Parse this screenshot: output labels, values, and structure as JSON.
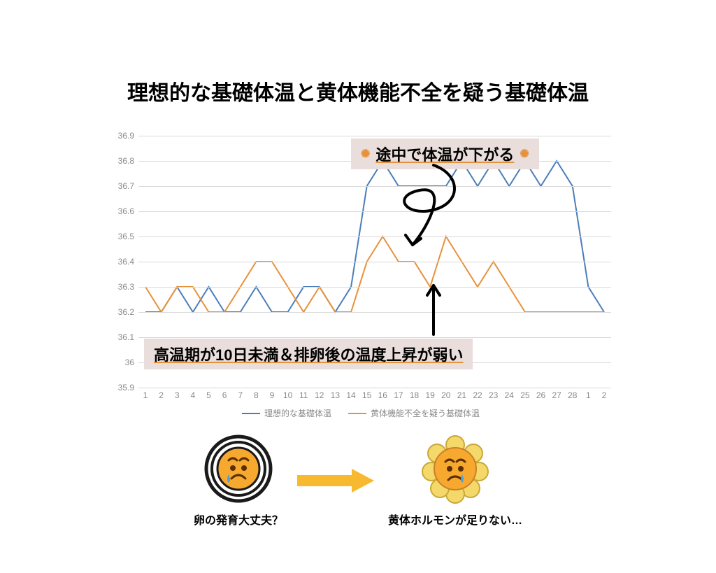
{
  "title": {
    "text": "理想的な基礎体温と黄体機能不全を疑う基礎体温",
    "fontsize": 30,
    "color": "#000000"
  },
  "chart": {
    "type": "line",
    "background_color": "#ffffff",
    "grid_color": "#d9d9d9",
    "axis_label_color": "#8a8a8a",
    "axis_label_fontsize": 12,
    "legend_fontsize": 12,
    "ylim": [
      35.9,
      36.9
    ],
    "ytick_step": 0.1,
    "yticks": [
      "35.9",
      "36",
      "36.1",
      "36.2",
      "36.3",
      "36.4",
      "36.5",
      "36.6",
      "36.7",
      "36.8",
      "36.9"
    ],
    "categories": [
      "1",
      "2",
      "3",
      "4",
      "5",
      "6",
      "7",
      "8",
      "9",
      "10",
      "11",
      "12",
      "13",
      "14",
      "15",
      "16",
      "17",
      "18",
      "19",
      "20",
      "21",
      "22",
      "23",
      "24",
      "25",
      "26",
      "27",
      "28",
      "1",
      "2"
    ],
    "series": [
      {
        "name": "理想的な基礎体温",
        "color": "#4a7ebb",
        "line_width": 2,
        "values": [
          36.2,
          36.2,
          36.3,
          36.2,
          36.3,
          36.2,
          36.2,
          36.3,
          36.2,
          36.2,
          36.3,
          36.3,
          36.2,
          36.3,
          36.7,
          36.8,
          36.7,
          36.7,
          36.7,
          36.7,
          36.8,
          36.7,
          36.8,
          36.7,
          36.8,
          36.7,
          36.8,
          36.7,
          36.3,
          36.2
        ]
      },
      {
        "name": "黄体機能不全を疑う基礎体温",
        "color": "#e8913b",
        "line_width": 2,
        "values": [
          36.3,
          36.2,
          36.3,
          36.3,
          36.2,
          36.2,
          36.3,
          36.4,
          36.4,
          36.3,
          36.2,
          36.3,
          36.2,
          36.2,
          36.4,
          36.5,
          36.4,
          36.4,
          36.3,
          36.5,
          36.4,
          36.3,
          36.4,
          36.3,
          36.2,
          36.2,
          36.2,
          36.2,
          36.2,
          36.2
        ]
      }
    ]
  },
  "annotations": {
    "top": {
      "text": "途中で体温が下がる",
      "fontsize": 22,
      "arrow_color": "#000000",
      "box_bg": "#e9dedb",
      "text_underline_color": "#e8913b"
    },
    "bottom": {
      "text": "高温期が10日未満＆排卵後の温度上昇が弱い",
      "fontsize": 22,
      "arrow_color": "#000000",
      "box_bg": "#e9dedb",
      "text_underline_color": "#e8913b"
    }
  },
  "bottom_icons": {
    "left_label": "卵の発育大丈夫？",
    "right_label": "黄体ホルモンが足りない…",
    "label_fontsize": 16,
    "arrow_color": "#f7b92f",
    "egg_ring_color": "#1a1a1a",
    "egg_face_color": "#f7a82f",
    "flower_color": "#f5d86a",
    "tear_color": "#4aa3e0"
  }
}
